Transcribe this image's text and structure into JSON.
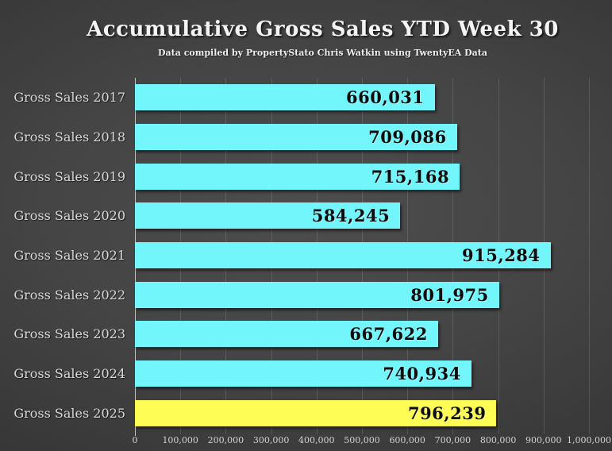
{
  "chart_data": {
    "type": "bar",
    "orientation": "horizontal",
    "title": "Accumulative Gross Sales YTD Week 30",
    "subtitle": "Data compiled by PropertyStato Chris Watkin using TwentyEA Data",
    "categories": [
      "Gross Sales 2017",
      "Gross Sales 2018",
      "Gross Sales 2019",
      "Gross Sales 2020",
      "Gross Sales 2021",
      "Gross Sales 2022",
      "Gross Sales 2023",
      "Gross Sales 2024",
      "Gross Sales 2025"
    ],
    "values": [
      660031,
      709086,
      715168,
      584245,
      915284,
      801975,
      667622,
      740934,
      796239
    ],
    "value_labels": [
      "660,031",
      "709,086",
      "715,168",
      "584,245",
      "915,284",
      "801,975",
      "667,622",
      "740,934",
      "796,239"
    ],
    "xlim": [
      0,
      1000000
    ],
    "x_tick_labels": [
      "0",
      "100,000",
      "200,000",
      "300,000",
      "400,000",
      "500,000",
      "600,000",
      "700,000",
      "800,000",
      "900,000",
      "1,000,000"
    ],
    "xlabel": "",
    "ylabel": "",
    "grid": "vertical",
    "legend": "none",
    "bar_color": "#73F6FB",
    "highlight_color": "#FDFD55",
    "highlight_index": 8,
    "category_label_color": "#D8D8D8",
    "value_text_color": "#0C0C0C",
    "tick_label_color": "#D2D2D2"
  }
}
